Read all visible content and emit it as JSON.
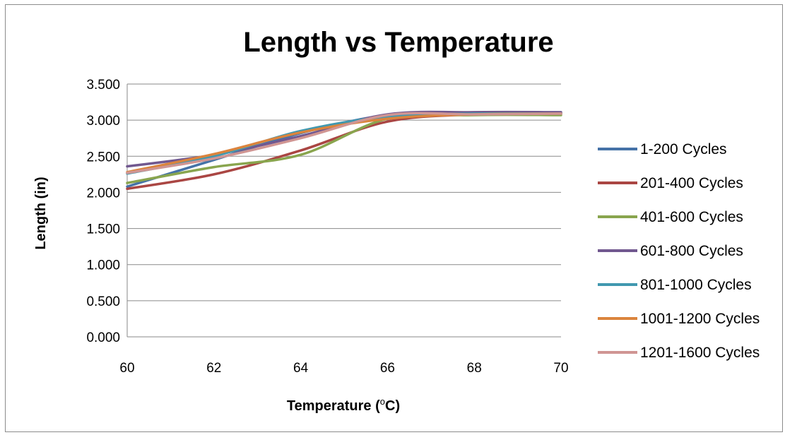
{
  "chart_data": {
    "type": "line",
    "title": "Length vs Temperature",
    "xlabel": "Temperature (°C)",
    "ylabel": "Length (in)",
    "xlim": [
      60,
      70
    ],
    "ylim": [
      0,
      3.5
    ],
    "x_ticks": [
      "60",
      "62",
      "64",
      "66",
      "68",
      "70"
    ],
    "y_ticks": [
      "0.000",
      "0.500",
      "1.000",
      "1.500",
      "2.000",
      "2.500",
      "3.000",
      "3.500"
    ],
    "x": [
      60,
      62,
      64,
      66,
      68,
      70
    ],
    "legend_position": "right",
    "grid": "horizontal",
    "series": [
      {
        "name": "1-200 Cycles",
        "color": "#4572a7",
        "values": [
          2.08,
          2.45,
          2.82,
          3.07,
          3.1,
          3.1
        ]
      },
      {
        "name": "201-400 Cycles",
        "color": "#aa4643",
        "values": [
          2.05,
          2.25,
          2.58,
          2.98,
          3.08,
          3.09
        ]
      },
      {
        "name": "401-600 Cycles",
        "color": "#89a54e",
        "values": [
          2.13,
          2.35,
          2.52,
          3.02,
          3.07,
          3.07
        ]
      },
      {
        "name": "601-800 Cycles",
        "color": "#71588f",
        "values": [
          2.36,
          2.52,
          2.78,
          3.08,
          3.11,
          3.11
        ]
      },
      {
        "name": "801-1000 Cycles",
        "color": "#4198af",
        "values": [
          2.26,
          2.5,
          2.85,
          3.05,
          3.09,
          3.09
        ]
      },
      {
        "name": "1001-1200 Cycles",
        "color": "#db843d",
        "values": [
          2.28,
          2.53,
          2.83,
          3.02,
          3.08,
          3.09
        ]
      },
      {
        "name": "1201-1600 Cycles",
        "color": "#d09593",
        "values": [
          2.27,
          2.47,
          2.75,
          3.07,
          3.08,
          3.09
        ]
      }
    ]
  }
}
